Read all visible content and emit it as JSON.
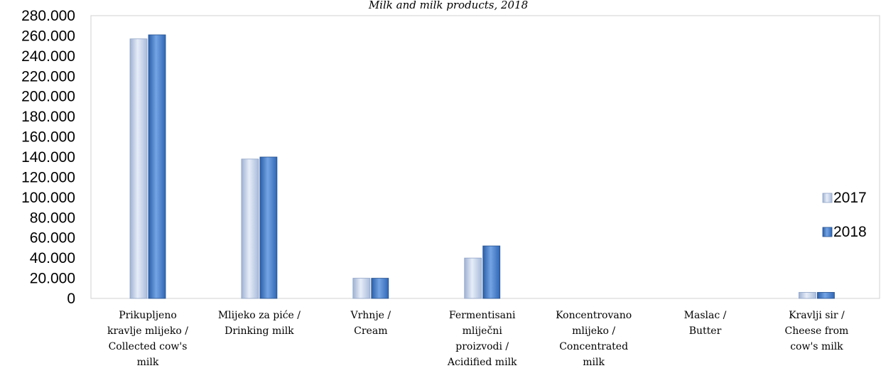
{
  "chart_data": {
    "type": "bar",
    "title": "Milk and milk products, 2018",
    "categories": [
      [
        "Prikupljeno",
        "kravlje mlijeko /",
        "Collected cow's",
        "milk"
      ],
      [
        "Mlijeko za piće /",
        "Drinking milk"
      ],
      [
        "Vrhnje /",
        "Cream"
      ],
      [
        "Fermentisani",
        "mliječni",
        "proizvodi /",
        "Acidified milk"
      ],
      [
        "Koncentrovano",
        "mlijeko /",
        "Concentrated",
        "milk"
      ],
      [
        "Maslac /",
        "Butter"
      ],
      [
        "Kravlji sir /",
        "Cheese from",
        "cow's milk"
      ]
    ],
    "series": [
      {
        "name": "2017",
        "values": [
          257000,
          138000,
          20000,
          40000,
          0,
          0,
          6000
        ],
        "color": "#bccbe4"
      },
      {
        "name": "2018",
        "values": [
          261000,
          140000,
          20000,
          52000,
          0,
          0,
          6000
        ],
        "color": "#3f78c8"
      }
    ],
    "ylim": [
      0,
      280000
    ],
    "yticks": [
      "0",
      "20.000",
      "40.000",
      "60.000",
      "80.000",
      "100.000",
      "120.000",
      "140.000",
      "160.000",
      "180.000",
      "200.000",
      "220.000",
      "240.000",
      "260.000",
      "280.000"
    ],
    "grid": false,
    "legend_position": "right"
  }
}
